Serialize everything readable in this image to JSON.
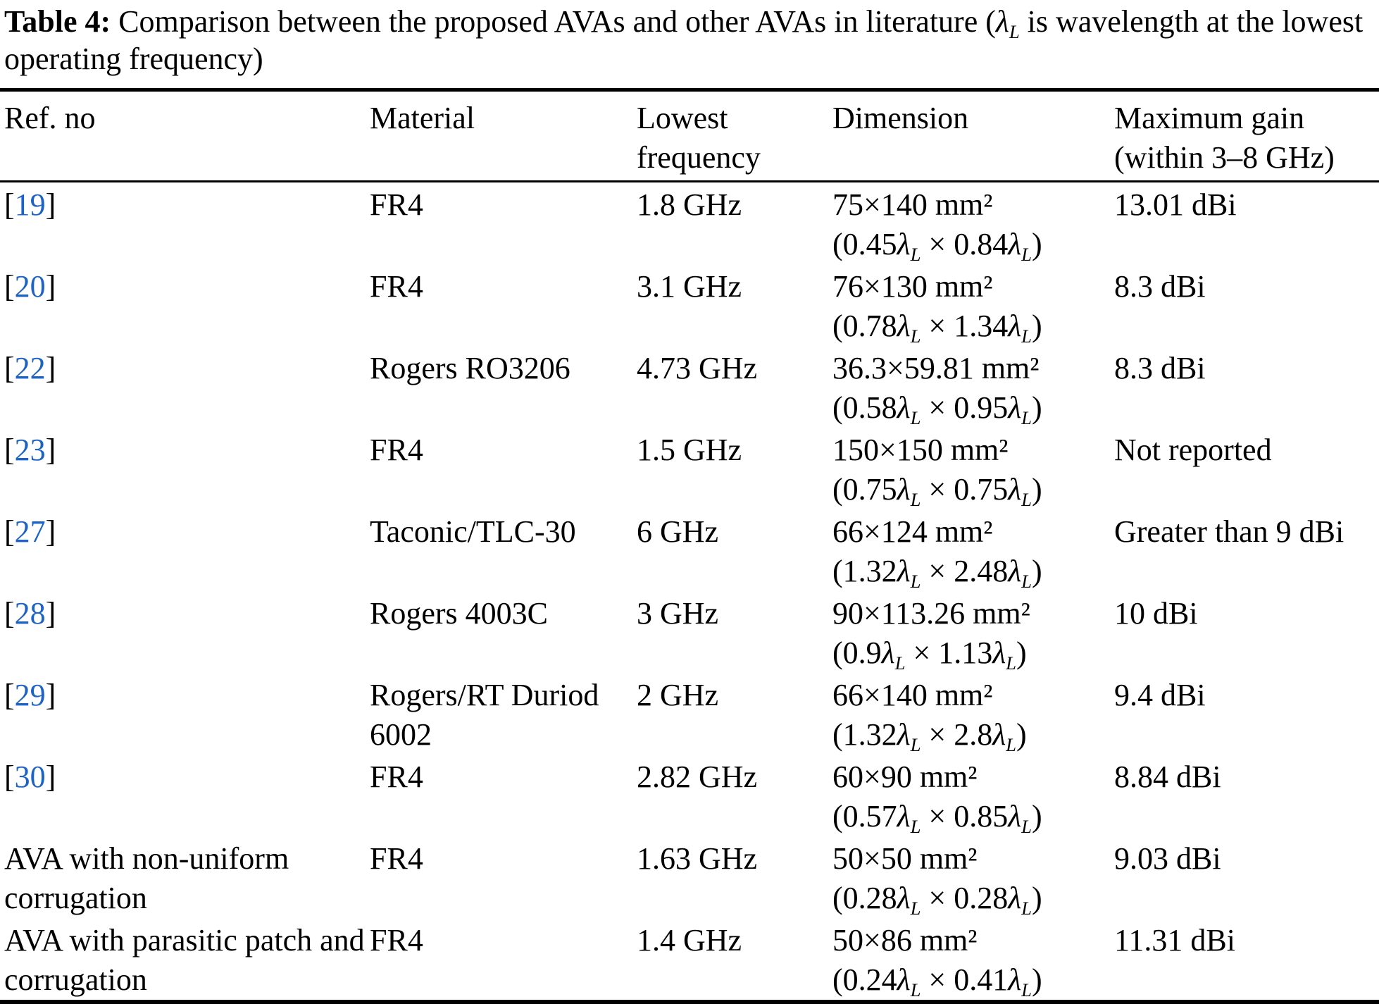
{
  "caption": {
    "label": "Table 4:",
    "text": "Comparison between the proposed AVAs and other AVAs in literature (λ_L is wavelength at the lowest operating frequency)"
  },
  "colors": {
    "citation_blue": "#1e63c4",
    "text": "#000000",
    "background": "#ffffff"
  },
  "table": {
    "columns": [
      "Ref. no",
      "Material",
      "Lowest frequency",
      "Dimension",
      "Maximum gain (within 3–8 GHz)"
    ],
    "rows": [
      {
        "ref": "19",
        "citation": true,
        "material": "FR4",
        "lowest_frequency": "1.8 GHz",
        "dimension_mm": "75×140 mm²",
        "dimension_lambda": "(0.45λ_L × 0.84λ_L)",
        "max_gain": "13.01 dBi"
      },
      {
        "ref": "20",
        "citation": true,
        "material": "FR4",
        "lowest_frequency": "3.1 GHz",
        "dimension_mm": "76×130 mm²",
        "dimension_lambda": "(0.78λ_L × 1.34λ_L)",
        "max_gain": "8.3 dBi"
      },
      {
        "ref": "22",
        "citation": true,
        "material": "Rogers RO3206",
        "lowest_frequency": "4.73 GHz",
        "dimension_mm": "36.3×59.81 mm²",
        "dimension_lambda": "(0.58λ_L × 0.95λ_L)",
        "max_gain": "8.3 dBi"
      },
      {
        "ref": "23",
        "citation": true,
        "material": "FR4",
        "lowest_frequency": "1.5 GHz",
        "dimension_mm": "150×150 mm²",
        "dimension_lambda": "(0.75λ_L × 0.75λ_L)",
        "max_gain": "Not reported"
      },
      {
        "ref": "27",
        "citation": true,
        "material": "Taconic/TLC-30",
        "lowest_frequency": "6 GHz",
        "dimension_mm": "66×124 mm²",
        "dimension_lambda": "(1.32λ_L × 2.48λ_L)",
        "max_gain": "Greater than 9 dBi"
      },
      {
        "ref": "28",
        "citation": true,
        "material": "Rogers 4003C",
        "lowest_frequency": "3 GHz",
        "dimension_mm": "90×113.26 mm²",
        "dimension_lambda": "(0.9λ_L × 1.13λ_L)",
        "max_gain": "10 dBi"
      },
      {
        "ref": "29",
        "citation": true,
        "material": "Rogers/RT Duriod 6002",
        "lowest_frequency": "2 GHz",
        "dimension_mm": "66×140 mm²",
        "dimension_lambda": "(1.32λ_L × 2.8λ_L)",
        "max_gain": "9.4 dBi"
      },
      {
        "ref": "30",
        "citation": true,
        "material": "FR4",
        "lowest_frequency": "2.82 GHz",
        "dimension_mm": "60×90 mm²",
        "dimension_lambda": "(0.57λ_L × 0.85λ_L)",
        "max_gain": "8.84 dBi"
      },
      {
        "ref": "AVA with non-uniform corrugation",
        "citation": false,
        "material": "FR4",
        "lowest_frequency": "1.63 GHz",
        "dimension_mm": "50×50 mm²",
        "dimension_lambda": "(0.28λ_L × 0.28λ_L)",
        "max_gain": "9.03 dBi"
      },
      {
        "ref": "AVA with parasitic patch and corrugation",
        "citation": false,
        "material": "FR4",
        "lowest_frequency": "1.4 GHz",
        "dimension_mm": "50×86 mm²",
        "dimension_lambda": "(0.24λ_L × 0.41λ_L)",
        "max_gain": "11.31 dBi"
      }
    ]
  }
}
